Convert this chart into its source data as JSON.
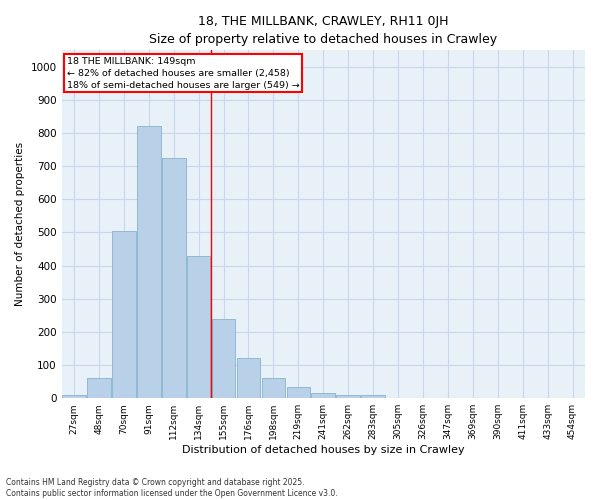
{
  "title": "18, THE MILLBANK, CRAWLEY, RH11 0JH",
  "subtitle": "Size of property relative to detached houses in Crawley",
  "xlabel": "Distribution of detached houses by size in Crawley",
  "ylabel": "Number of detached properties",
  "bins": [
    "27sqm",
    "48sqm",
    "70sqm",
    "91sqm",
    "112sqm",
    "134sqm",
    "155sqm",
    "176sqm",
    "198sqm",
    "219sqm",
    "241sqm",
    "262sqm",
    "283sqm",
    "305sqm",
    "326sqm",
    "347sqm",
    "369sqm",
    "390sqm",
    "411sqm",
    "433sqm",
    "454sqm"
  ],
  "values": [
    10,
    60,
    505,
    820,
    725,
    430,
    240,
    120,
    60,
    35,
    15,
    10,
    10,
    2,
    0,
    0,
    1,
    0,
    0,
    0,
    0
  ],
  "bar_color": "#b8d0e8",
  "bar_edge_color": "#7aaac8",
  "grid_color": "#c8d8e8",
  "background_color": "#e8f0f8",
  "annotation_text": "18 THE MILLBANK: 149sqm\n← 82% of detached houses are smaller (2,458)\n18% of semi-detached houses are larger (549) →",
  "footer": "Contains HM Land Registry data © Crown copyright and database right 2025.\nContains public sector information licensed under the Open Government Licence v3.0.",
  "ylim": [
    0,
    1050
  ],
  "yticks": [
    0,
    100,
    200,
    300,
    400,
    500,
    600,
    700,
    800,
    900,
    1000
  ]
}
